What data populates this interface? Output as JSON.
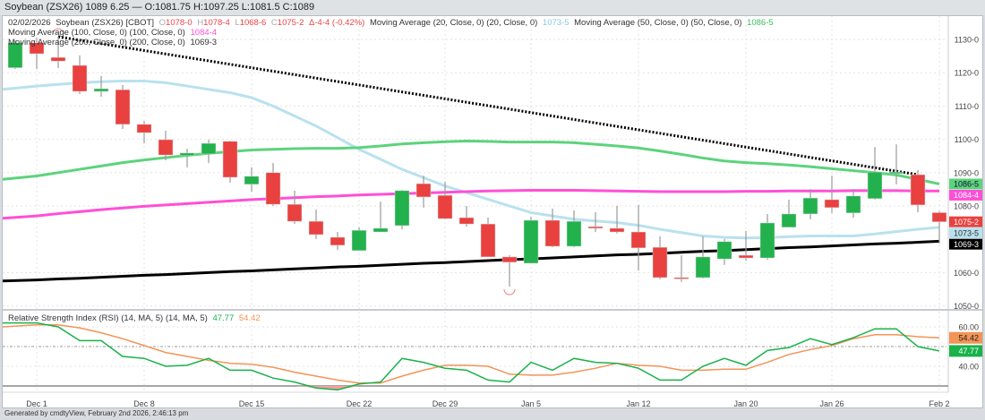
{
  "titlebar": {
    "text": "Soybean (ZSX26) 1089 6.25 — O:1081.75 H:1097.25 L:1081.5 C:1089"
  },
  "header": {
    "date": "02/02/2026",
    "symbol": "Soybean (ZSX26) [CBOT]",
    "o_label": "O",
    "o_value": "1078-0",
    "h_label": "H",
    "h_value": "1078-4",
    "l_label": "L",
    "l_value": "1068-6",
    "c_label": "C",
    "c_value": "1075-2",
    "change": "Δ-4-4 (-0.42%)",
    "ma20_label": "Moving Average (20, Close, 0)  (20, Close, 0)",
    "ma20_value": "1073-5",
    "ma50_label": "Moving Average (50, Close, 0)  (50, Close, 0)",
    "ma50_value": "1086-5",
    "ma100_label": "Moving Average (100, Close, 0)  (100, Close, 0)",
    "ma100_value": "1084-4",
    "ma200_label": "Moving Average (200, Close, 0)  (200, Close, 0)",
    "ma200_value": "1069-3"
  },
  "rsi_header": {
    "label": "Relative Strength Index (RSI) (14, MA, 5)  (14, MA, 5)",
    "rsi_value": "47.77",
    "ma_value": "54.42"
  },
  "footer": {
    "text": "Generated by cmdtyView, February 2nd 2026, 2:46:13 pm"
  },
  "colors": {
    "up": "#22b14c",
    "down": "#e8413f",
    "ma20": "#b9e1ee",
    "ma50": "#5cd37c",
    "ma100": "#ff4fd6",
    "ma200": "#000000",
    "rsi": "#19b24b",
    "rsi_ma": "#f39457",
    "rsi_oversold_fill": "#f4a0a4"
  },
  "chart_data": [
    {
      "type": "candlestick",
      "title": "Soybean (ZSX26) [CBOT]",
      "ylim": [
        1048,
        1134
      ],
      "yticks": [
        1130,
        1120,
        1110,
        1100,
        1090,
        1080,
        1060,
        1050
      ],
      "ytick_labels": [
        "1130-0",
        "1120-0",
        "1110-0",
        "1100-0",
        "1090-0",
        "1080-0",
        "1060-0",
        "1050-0"
      ],
      "grid": true,
      "xtick_labels": [
        {
          "index": 1,
          "label": "Dec 1"
        },
        {
          "index": 6,
          "label": "Dec 8"
        },
        {
          "index": 11,
          "label": "Dec 15"
        },
        {
          "index": 16,
          "label": "Dec 22"
        },
        {
          "index": 20,
          "label": "Dec 29"
        },
        {
          "index": 24,
          "label": "Jan 5"
        },
        {
          "index": 29,
          "label": "Jan 12"
        },
        {
          "index": 34,
          "label": "Jan 20"
        },
        {
          "index": 38,
          "label": "Jan 26"
        },
        {
          "index": 43,
          "label": "Feb 2"
        }
      ],
      "ohlc": [
        [
          1121.5,
          1129.7,
          1121.1,
          1129.0
        ],
        [
          1129.0,
          1130.5,
          1121.1,
          1125.7
        ],
        [
          1124.6,
          1130.8,
          1121.4,
          1123.5
        ],
        [
          1122.2,
          1125.2,
          1113.6,
          1114.4
        ],
        [
          1114.4,
          1119.0,
          1112.8,
          1115.2
        ],
        [
          1114.9,
          1116.3,
          1103.1,
          1104.5
        ],
        [
          1104.5,
          1105.5,
          1098.8,
          1102.0
        ],
        [
          1099.9,
          1102.6,
          1093.7,
          1095.3
        ],
        [
          1095.1,
          1097.2,
          1091.6,
          1095.9
        ],
        [
          1095.6,
          1099.9,
          1092.9,
          1098.8
        ],
        [
          1099.4,
          1099.6,
          1087.0,
          1088.6
        ],
        [
          1086.5,
          1091.6,
          1084.3,
          1088.9
        ],
        [
          1090.0,
          1092.9,
          1080.0,
          1080.5
        ],
        [
          1080.5,
          1084.6,
          1074.6,
          1075.4
        ],
        [
          1075.4,
          1078.9,
          1070.1,
          1071.4
        ],
        [
          1070.6,
          1072.2,
          1066.8,
          1068.2
        ],
        [
          1066.6,
          1073.6,
          1066.6,
          1072.7
        ],
        [
          1072.2,
          1081.3,
          1072.2,
          1073.3
        ],
        [
          1074.1,
          1084.8,
          1073.0,
          1084.6
        ],
        [
          1086.7,
          1089.1,
          1079.5,
          1082.7
        ],
        [
          1083.2,
          1087.3,
          1076.0,
          1076.2
        ],
        [
          1076.5,
          1080.0,
          1073.8,
          1074.6
        ],
        [
          1074.6,
          1076.5,
          1064.7,
          1064.7
        ],
        [
          1064.7,
          1065.2,
          1055.8,
          1063.1
        ],
        [
          1062.8,
          1076.8,
          1062.8,
          1075.7
        ],
        [
          1075.7,
          1079.2,
          1067.6,
          1067.9
        ],
        [
          1067.9,
          1078.7,
          1067.6,
          1075.4
        ],
        [
          1073.8,
          1078.1,
          1072.2,
          1073.3
        ],
        [
          1073.3,
          1080.0,
          1071.7,
          1072.2
        ],
        [
          1072.2,
          1080.3,
          1060.6,
          1067.4
        ],
        [
          1067.6,
          1070.9,
          1058.0,
          1058.5
        ],
        [
          1058.5,
          1065.2,
          1057.2,
          1058.2
        ],
        [
          1058.5,
          1070.9,
          1058.2,
          1064.7
        ],
        [
          1064.1,
          1070.1,
          1062.3,
          1069.3
        ],
        [
          1065.2,
          1072.5,
          1063.6,
          1064.4
        ],
        [
          1064.4,
          1077.6,
          1063.9,
          1074.9
        ],
        [
          1073.6,
          1081.9,
          1073.6,
          1077.6
        ],
        [
          1077.6,
          1085.1,
          1076.0,
          1082.4
        ],
        [
          1081.9,
          1089.1,
          1077.9,
          1079.5
        ],
        [
          1077.9,
          1085.1,
          1076.5,
          1083.0
        ],
        [
          1082.2,
          1097.7,
          1081.9,
          1090.2
        ],
        [
          1089.7,
          1098.5,
          1086.5,
          1090.2
        ],
        [
          1089.4,
          1090.8,
          1078.1,
          1080.3
        ],
        [
          1078.0,
          1078.5,
          1068.75,
          1075.25
        ]
      ],
      "series": [
        {
          "name": "Moving Average (20, Close, 0)",
          "last_label": "1073-5",
          "values": [
            1115,
            1116,
            1116.5,
            1117,
            1117.3,
            1117.5,
            1117.5,
            1117,
            1116,
            1115,
            1114,
            1112.5,
            1110,
            1107,
            1104,
            1100.5,
            1097,
            1094,
            1091,
            1088.5,
            1086,
            1084,
            1082,
            1080,
            1078,
            1077,
            1076,
            1075.5,
            1075,
            1074.2,
            1073,
            1072,
            1071,
            1070.6,
            1070.4,
            1070.5,
            1070.8,
            1071,
            1071,
            1071,
            1071.6,
            1072.3,
            1073,
            1073.6
          ]
        },
        {
          "name": "Moving Average (50, Close, 0)",
          "last_label": "1086-5",
          "values": [
            1088,
            1089,
            1090,
            1091,
            1092,
            1093,
            1093.8,
            1094.5,
            1095.2,
            1095.8,
            1096.3,
            1096.8,
            1097,
            1097.2,
            1097.3,
            1097.3,
            1097.5,
            1098,
            1098.6,
            1099,
            1099.3,
            1099.5,
            1099.4,
            1099.2,
            1099.2,
            1099.2,
            1099,
            1098.5,
            1098,
            1097.4,
            1096.5,
            1095.5,
            1094.4,
            1093.5,
            1093,
            1092.7,
            1092.3,
            1091.8,
            1091.2,
            1090.6,
            1090,
            1089.3,
            1088,
            1086.6
          ]
        },
        {
          "name": "Moving Average (100, Close, 0)",
          "last_label": "1084-4",
          "values": [
            1076.3,
            1077,
            1077.7,
            1078.3,
            1078.9,
            1079.4,
            1079.9,
            1080.3,
            1080.7,
            1081.1,
            1081.5,
            1081.9,
            1082.2,
            1082.5,
            1082.8,
            1083.0,
            1083.3,
            1083.5,
            1083.7,
            1083.9,
            1084.1,
            1084.3,
            1084.5,
            1084.6,
            1084.7,
            1084.7,
            1084.7,
            1084.6,
            1084.5,
            1084.4,
            1084.3,
            1084.3,
            1084.3,
            1084.3,
            1084.4,
            1084.4,
            1084.5,
            1084.5,
            1084.5,
            1084.6,
            1084.6,
            1084.6,
            1084.5,
            1084.5
          ]
        },
        {
          "name": "Moving Average (200, Close, 0)",
          "last_label": "1069-3",
          "values": [
            1057.5,
            1057.8,
            1058.1,
            1058.3,
            1058.6,
            1058.9,
            1059.2,
            1059.4,
            1059.7,
            1060.0,
            1060.3,
            1060.5,
            1060.8,
            1061.1,
            1061.4,
            1061.7,
            1061.9,
            1062.2,
            1062.5,
            1062.8,
            1063.0,
            1063.3,
            1063.6,
            1063.9,
            1064.1,
            1064.4,
            1064.7,
            1065.0,
            1065.3,
            1065.5,
            1065.8,
            1066.1,
            1066.4,
            1066.6,
            1066.9,
            1067.2,
            1067.5,
            1067.7,
            1068.0,
            1068.3,
            1068.6,
            1068.8,
            1069.1,
            1069.4
          ]
        }
      ],
      "last_close_label": "1075-2",
      "trendline": {
        "style": "dotted",
        "from": {
          "index": 2,
          "price": 1130.8
        },
        "to": {
          "index": 42,
          "price": 1089.4
        }
      },
      "markers": [
        {
          "type": "high",
          "index": 2
        },
        {
          "type": "low",
          "index": 23
        }
      ]
    },
    {
      "type": "line",
      "title": "Relative Strength Index (RSI) (14, MA, 5)",
      "ylim": [
        27,
        70
      ],
      "yticks": [
        60,
        40
      ],
      "ytick_labels": [
        "60.00",
        "40.00"
      ],
      "reference_lines": [
        {
          "value": 50,
          "style": "dotted"
        },
        {
          "value": 30,
          "style": "solid"
        }
      ],
      "series": [
        {
          "name": "RSI",
          "last_label": "47.77",
          "values": [
            62,
            62,
            60,
            53,
            53,
            45,
            44,
            40,
            40.5,
            44,
            38,
            38,
            34,
            32,
            29,
            28,
            31,
            32,
            44,
            42,
            39,
            38,
            33,
            32,
            42,
            38,
            44,
            42,
            41.5,
            39,
            33,
            33,
            40,
            44,
            40.5,
            48,
            49.5,
            54,
            51,
            54.5,
            59,
            59,
            50,
            47.77
          ]
        },
        {
          "name": "MA",
          "last_label": "54.42",
          "values": [
            60,
            61,
            61,
            59.5,
            57,
            54,
            50.5,
            47,
            45,
            43,
            41.5,
            41,
            39.5,
            37,
            35,
            33,
            31.5,
            31.5,
            35,
            38,
            40.5,
            40.5,
            40,
            36,
            35.5,
            35.5,
            37,
            39,
            41.5,
            40.5,
            40,
            38,
            38,
            38.5,
            38.5,
            42,
            46,
            48.5,
            50.5,
            54,
            56,
            56,
            55,
            54.42
          ]
        }
      ]
    }
  ]
}
